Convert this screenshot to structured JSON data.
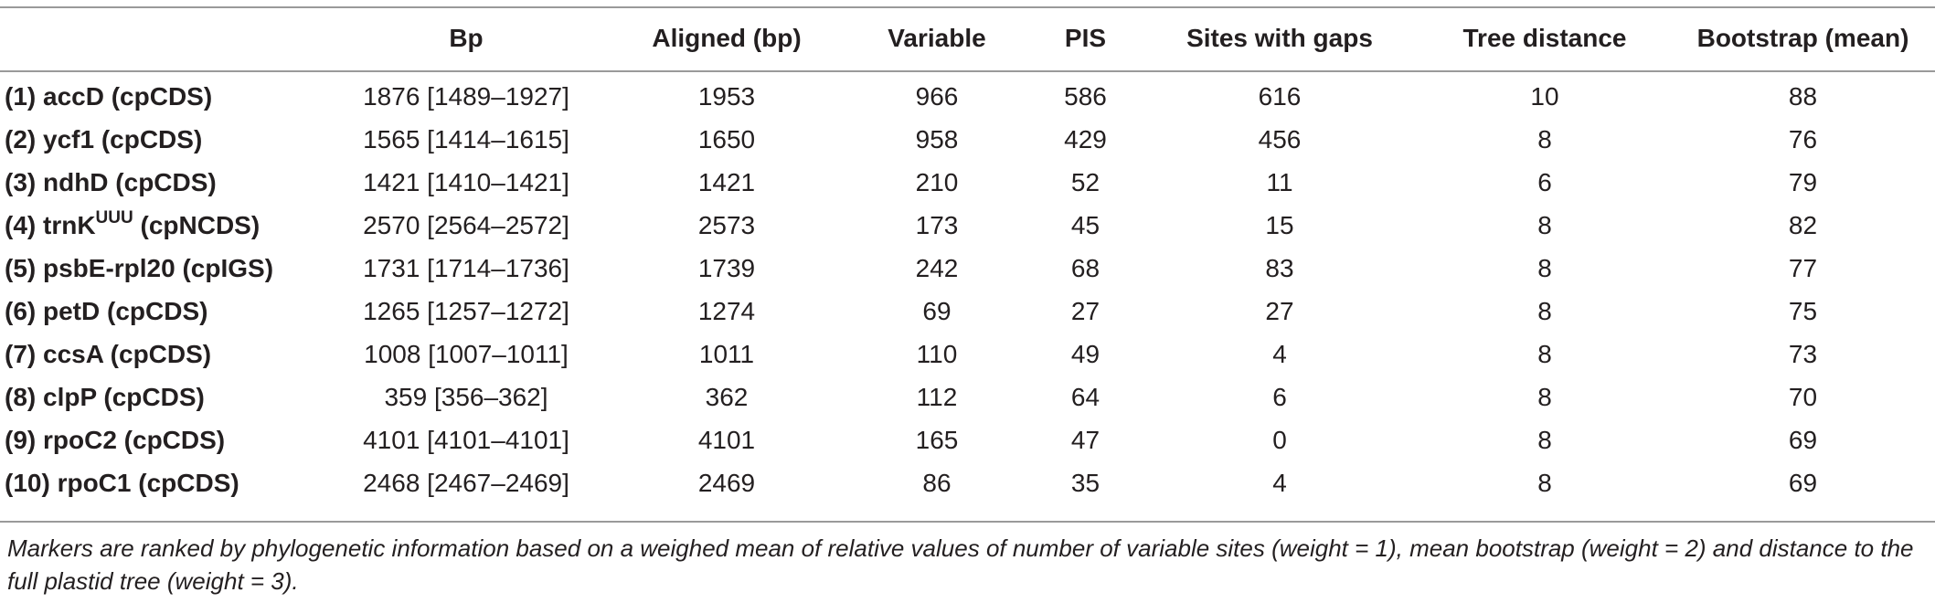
{
  "columns": [
    "",
    "Bp",
    "Aligned (bp)",
    "Variable",
    "PIS",
    "Sites with gaps",
    "Tree distance",
    "Bootstrap (mean)"
  ],
  "rows": [
    {
      "name": "(1) accD (cpCDS)",
      "bp": "1876 [1489–1927]",
      "aligned": "1953",
      "variable": "966",
      "pis": "586",
      "gaps": "616",
      "tree": "10",
      "bootstrap": "88"
    },
    {
      "name": "(2) ycf1 (cpCDS)",
      "bp": "1565 [1414–1615]",
      "aligned": "1650",
      "variable": "958",
      "pis": "429",
      "gaps": "456",
      "tree": "8",
      "bootstrap": "76"
    },
    {
      "name": "(3) ndhD (cpCDS)",
      "bp": "1421 [1410–1421]",
      "aligned": "1421",
      "variable": "210",
      "pis": "52",
      "gaps": "11",
      "tree": "6",
      "bootstrap": "79"
    },
    {
      "name_pre": "(4) trnK",
      "name_sup": "UUU",
      "name_post": " (cpNCDS)",
      "bp": "2570 [2564–2572]",
      "aligned": "2573",
      "variable": "173",
      "pis": "45",
      "gaps": "15",
      "tree": "8",
      "bootstrap": "82"
    },
    {
      "name": "(5) psbE-rpl20 (cpIGS)",
      "bp": "1731 [1714–1736]",
      "aligned": "1739",
      "variable": "242",
      "pis": "68",
      "gaps": "83",
      "tree": "8",
      "bootstrap": "77"
    },
    {
      "name": "(6) petD (cpCDS)",
      "bp": "1265 [1257–1272]",
      "aligned": "1274",
      "variable": "69",
      "pis": "27",
      "gaps": "27",
      "tree": "8",
      "bootstrap": "75"
    },
    {
      "name": "(7) ccsA (cpCDS)",
      "bp": "1008 [1007–1011]",
      "aligned": "1011",
      "variable": "110",
      "pis": "49",
      "gaps": "4",
      "tree": "8",
      "bootstrap": "73"
    },
    {
      "name": "(8) clpP (cpCDS)",
      "bp": "359 [356–362]",
      "aligned": "362",
      "variable": "112",
      "pis": "64",
      "gaps": "6",
      "tree": "8",
      "bootstrap": "70"
    },
    {
      "name": "(9) rpoC2 (cpCDS)",
      "bp": "4101 [4101–4101]",
      "aligned": "4101",
      "variable": "165",
      "pis": "47",
      "gaps": "0",
      "tree": "8",
      "bootstrap": "69"
    },
    {
      "name": "(10) rpoC1 (cpCDS)",
      "bp": "2468 [2467–2469]",
      "aligned": "2469",
      "variable": "86",
      "pis": "35",
      "gaps": "4",
      "tree": "8",
      "bootstrap": "69"
    }
  ],
  "footnote": "Markers are ranked by phylogenetic information based on a weighed mean of relative values of number of variable sites (weight = 1), mean bootstrap (weight = 2) and distance to the full plastid tree (weight = 3)."
}
